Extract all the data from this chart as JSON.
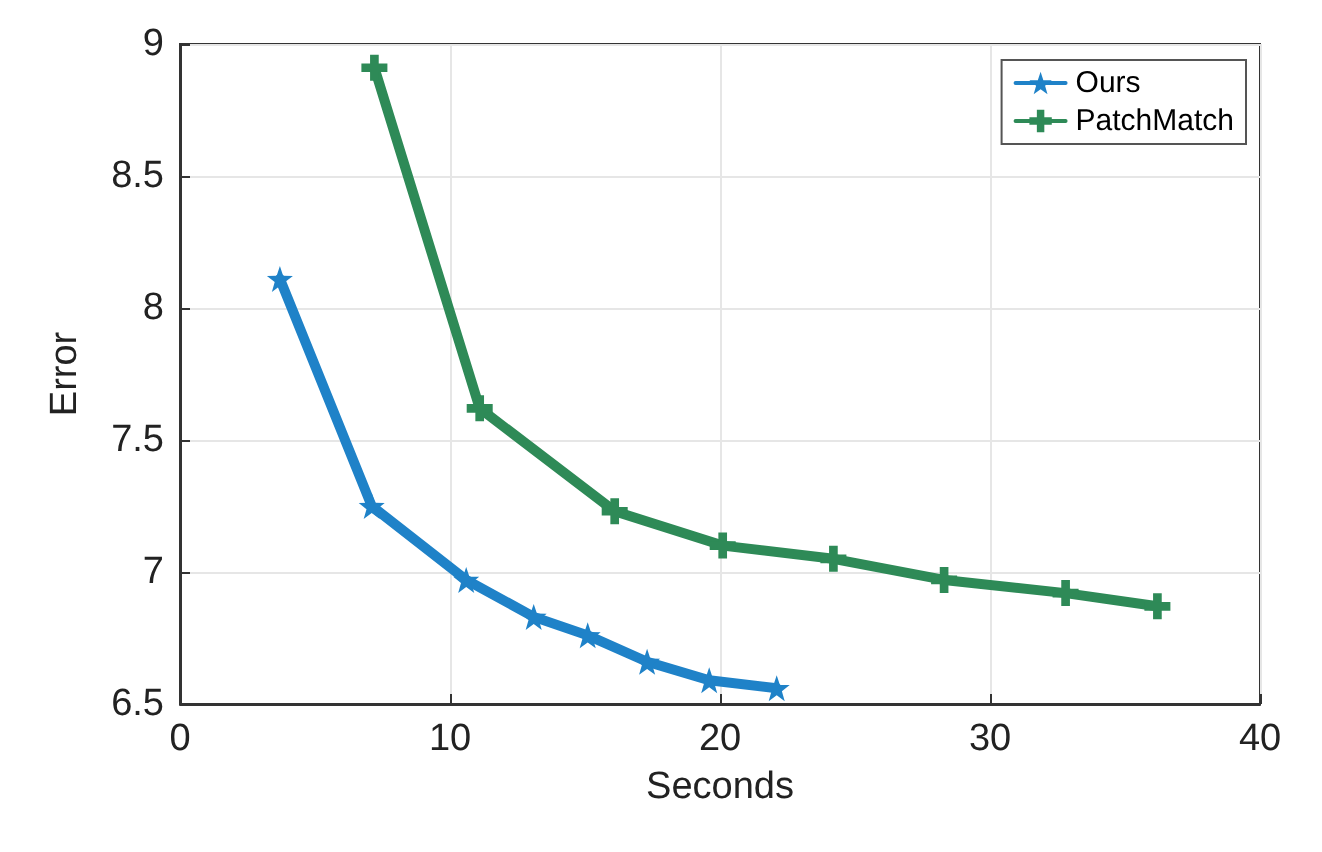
{
  "chart_data": {
    "type": "line",
    "xlabel": "Seconds",
    "ylabel": "Error",
    "xlim": [
      0,
      40
    ],
    "xticks": [
      0,
      10,
      20,
      30,
      40
    ],
    "ylim": [
      6.5,
      9
    ],
    "yticks": [
      6.5,
      7,
      7.5,
      8,
      8.5,
      9
    ],
    "grid": true,
    "legend": "top right",
    "line_style": "solid",
    "series": [
      {
        "name": "Ours",
        "color": "#1f82c8",
        "marker": "star",
        "x": [
          3.7,
          7.1,
          10.6,
          13.1,
          15.1,
          17.3,
          19.6,
          22.1
        ],
        "values": [
          8.11,
          7.25,
          6.97,
          6.83,
          6.76,
          6.66,
          6.59,
          6.56
        ]
      },
      {
        "name": "PatchMatch",
        "color": "#2e8a57",
        "marker": "cross",
        "x": [
          7.2,
          11.1,
          16.1,
          20.1,
          24.2,
          28.3,
          32.8,
          36.2
        ],
        "values": [
          8.91,
          7.62,
          7.23,
          7.1,
          7.05,
          6.97,
          6.92,
          6.87
        ]
      }
    ]
  }
}
